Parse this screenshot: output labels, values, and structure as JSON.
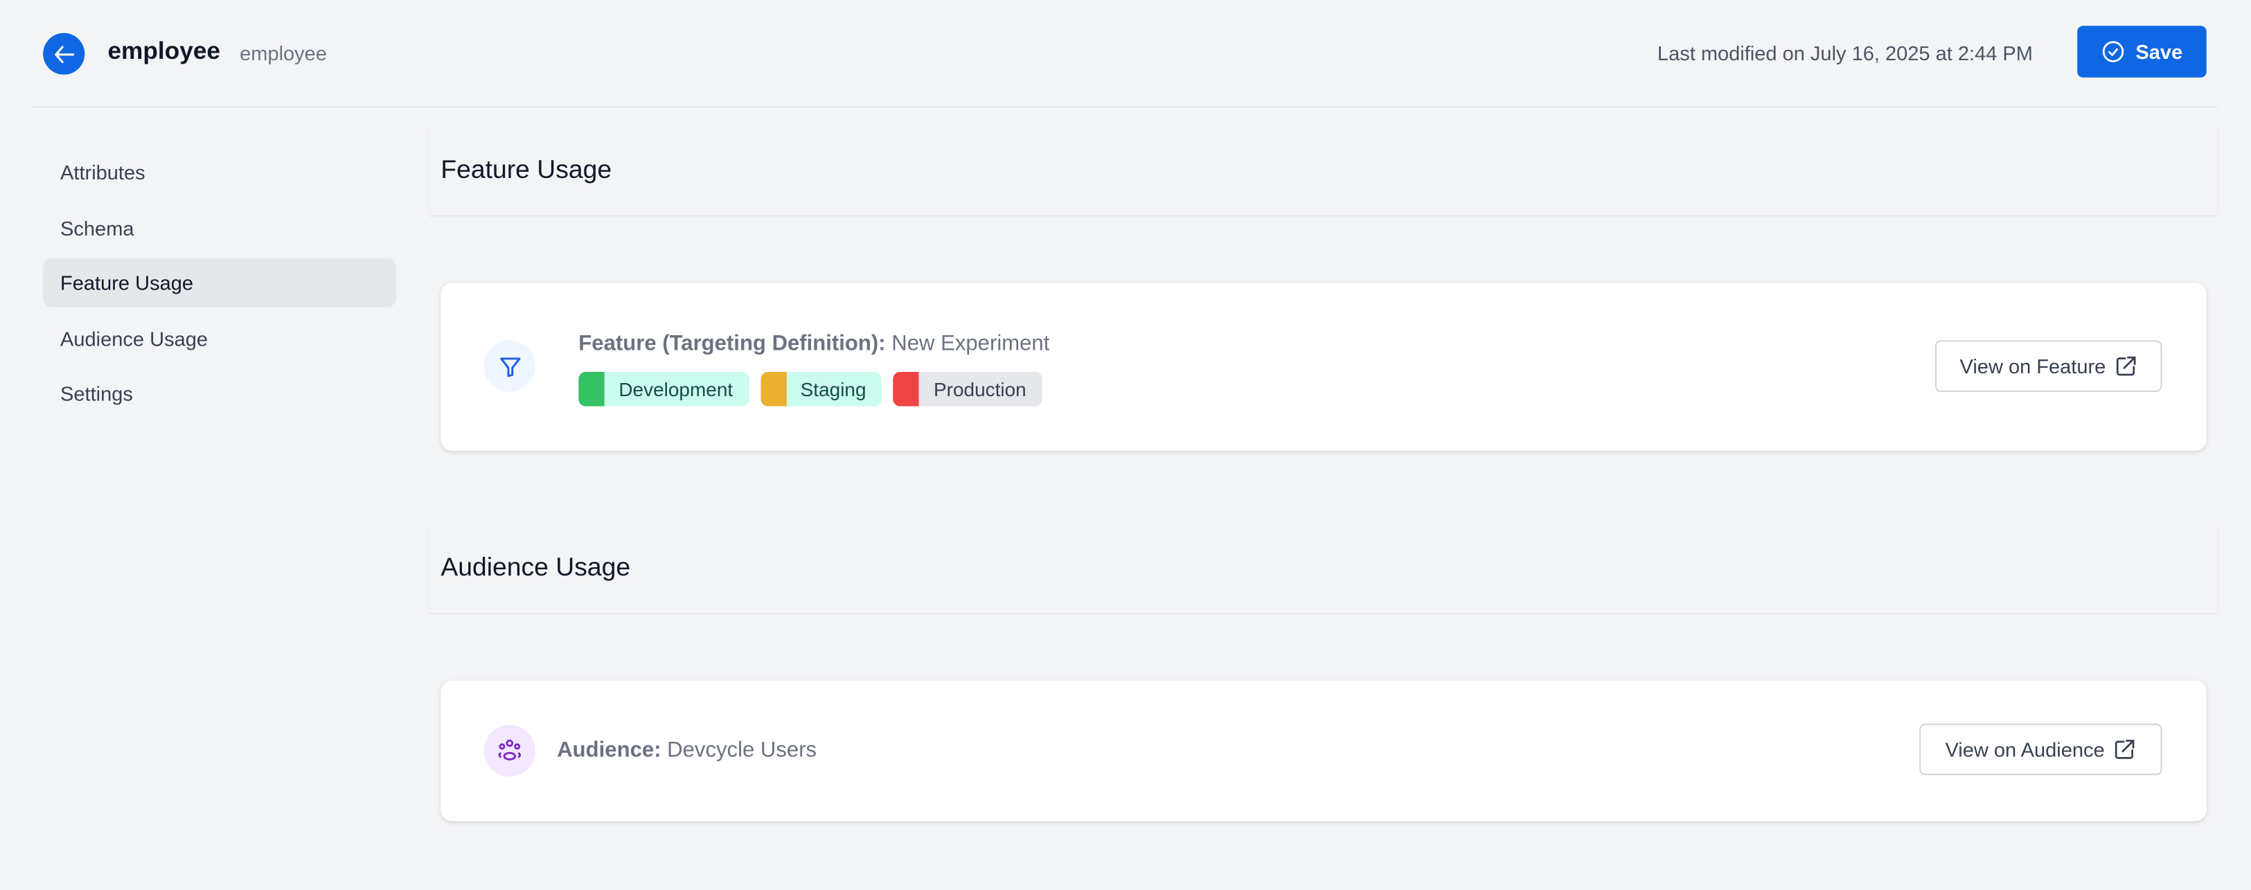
{
  "header": {
    "title": "employee",
    "subtitle": "employee",
    "last_modified": "Last modified on July 16, 2025 at 2:44 PM",
    "save_label": "Save",
    "accent": "#0f67e3"
  },
  "sidebar": {
    "items": [
      {
        "label": "Attributes"
      },
      {
        "label": "Schema"
      },
      {
        "label": "Feature Usage",
        "active": true
      },
      {
        "label": "Audience Usage"
      },
      {
        "label": "Settings"
      }
    ]
  },
  "feature_usage": {
    "heading": "Feature Usage",
    "card": {
      "icon": "filter-icon",
      "label": "Feature (Targeting Definition):",
      "name": "New Experiment",
      "button": "View on Feature",
      "environments": [
        {
          "name": "Development",
          "color": "#34c263",
          "bg": "#ccfbef",
          "text": "#134e48"
        },
        {
          "name": "Staging",
          "color": "#ebb030",
          "bg": "#ccfbef",
          "text": "#134e48"
        },
        {
          "name": "Production",
          "color": "#ef4444",
          "bg": "#e5e7eb",
          "text": "#374151"
        }
      ]
    }
  },
  "audience_usage": {
    "heading": "Audience Usage",
    "card": {
      "icon": "users-group-icon",
      "label": "Audience:",
      "name": "Devcycle Users",
      "button": "View on Audience"
    }
  }
}
